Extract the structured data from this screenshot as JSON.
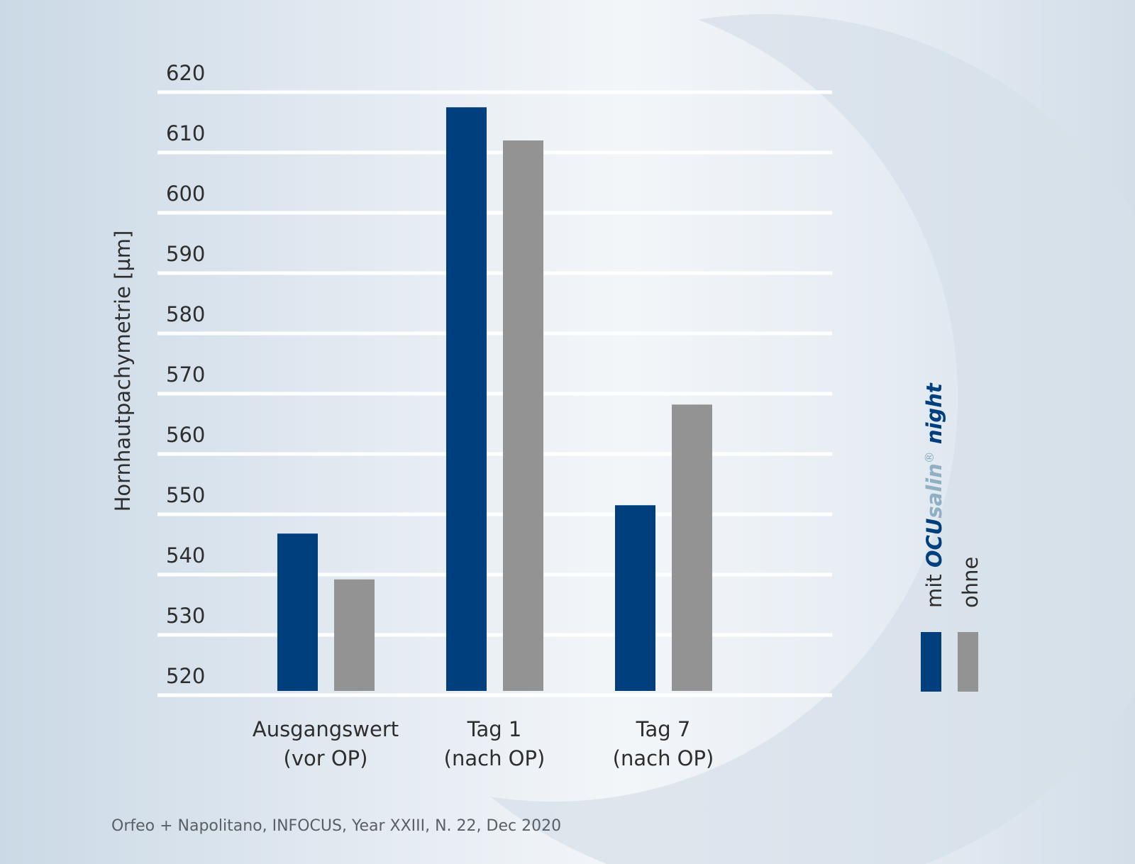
{
  "chart_data": {
    "type": "bar",
    "ylabel": "Hornhautpachymetrie [µm]",
    "ylim": [
      520,
      620
    ],
    "yticks": [
      "620",
      "610",
      "600",
      "590",
      "580",
      "570",
      "560",
      "550",
      "540",
      "530",
      "520"
    ],
    "ytick_values": [
      620,
      610,
      600,
      590,
      580,
      570,
      560,
      550,
      540,
      530,
      520
    ],
    "categories": [
      [
        "Ausgangswert",
        "(vor OP)"
      ],
      [
        "Tag 1",
        "(nach OP)"
      ],
      [
        "Tag 7",
        "(nach OP)"
      ]
    ],
    "series": [
      {
        "name": "mit OCUsalin® night",
        "color": "#003f7d",
        "values": [
          546.8,
          617.5,
          551.5
        ]
      },
      {
        "name": "ohne",
        "color": "#939393",
        "values": [
          539.2,
          612.0,
          568.2
        ]
      }
    ],
    "grid": true,
    "legend_placement": "right",
    "legend": {
      "series1_parts": {
        "prefix": "mit ",
        "brand_ocu": "OCU",
        "brand_salin": "salin",
        "reg": "®",
        "suffix": " night"
      },
      "series2_label": "ohne"
    }
  },
  "source": "Orfeo + Napolitano, INFOCUS, Year XXIII, N. 22, Dec 2020",
  "colors": {
    "brand_dark": "#003f7d",
    "brand_light": "#8fb0c3",
    "grey": "#939393",
    "grid": "#ffffff"
  }
}
